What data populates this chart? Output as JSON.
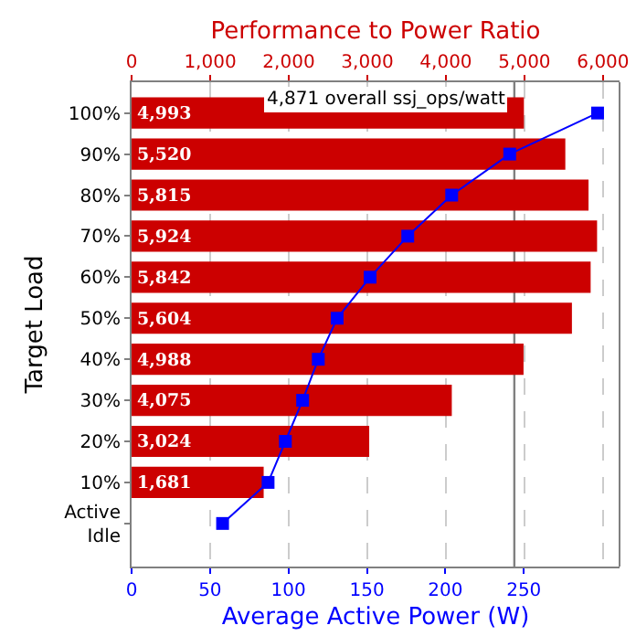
{
  "chart_data": {
    "type": "bar",
    "orientation": "horizontal",
    "categories": [
      "100%",
      "90%",
      "80%",
      "70%",
      "60%",
      "50%",
      "40%",
      "30%",
      "20%",
      "10%",
      "Active Idle"
    ],
    "series": [
      {
        "axis": "x2",
        "color": "#cc0000",
        "values": [
          4993,
          5520,
          5815,
          5924,
          5842,
          5604,
          4988,
          4075,
          3024,
          1681,
          null
        ],
        "value_labels": [
          "4,993",
          "5,520",
          "5,815",
          "5,924",
          "5,842",
          "5,604",
          "4,988",
          "4,075",
          "3,024",
          "1,681",
          null
        ]
      },
      {
        "type": "line",
        "color": "#0000ff",
        "marker": "square",
        "values": [
          297,
          241,
          204,
          176,
          152,
          131,
          119,
          109,
          98,
          87,
          58
        ]
      }
    ],
    "xlabel": "Average Active Power (W)",
    "xlim": [
      0,
      311
    ],
    "xticks": [
      0,
      50,
      100,
      150,
      200,
      250
    ],
    "x2label": "Performance to Power Ratio",
    "x2lim": [
      0,
      6210
    ],
    "x2ticks": [
      {
        "value": 0,
        "label": "0"
      },
      {
        "value": 1000,
        "label": "1,000"
      },
      {
        "value": 2000,
        "label": "2,000"
      },
      {
        "value": 3000,
        "label": "3,000"
      },
      {
        "value": 4000,
        "label": "4,000"
      },
      {
        "value": 5000,
        "label": "5,000"
      },
      {
        "value": 6000,
        "label": "6,000"
      }
    ],
    "ylabel": "Target Load",
    "ref_lines": [
      {
        "axis": "x2",
        "value": 4871,
        "label": "4,871 overall ssj_ops/watt",
        "color": "#808080"
      }
    ],
    "grid": "x2"
  }
}
